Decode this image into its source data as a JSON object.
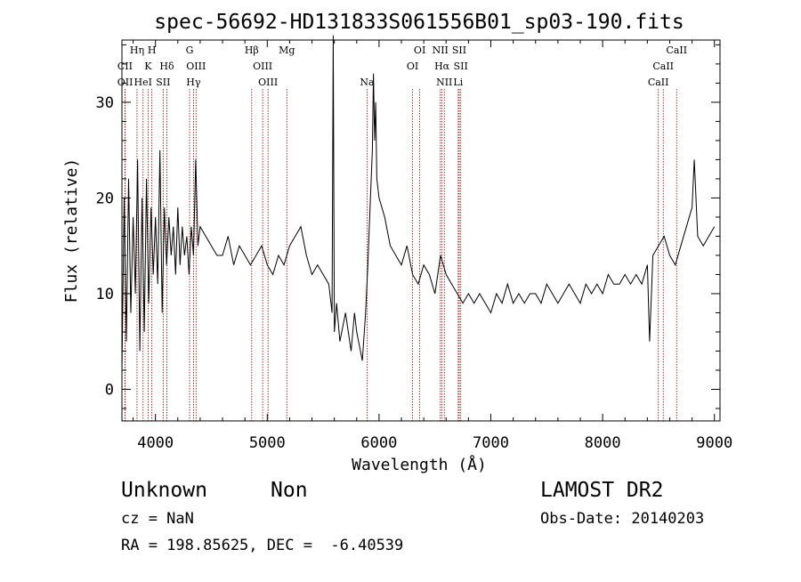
{
  "chart_data": {
    "type": "line",
    "title": "spec-56692-HD131833S061556B01_sp03-190.fits",
    "xlabel": "Wavelength (Å)",
    "ylabel": "Flux (relative)",
    "xlim": [
      3700,
      9050
    ],
    "ylim": [
      -3.3,
      36.5
    ],
    "x_ticks": [
      4000,
      5000,
      6000,
      7000,
      8000,
      9000
    ],
    "y_ticks": [
      0,
      10,
      20,
      30
    ],
    "x_tick_labels": [
      "4000",
      "5000",
      "6000",
      "7000",
      "8000",
      "9000"
    ],
    "y_tick_labels": [
      "0",
      "10",
      "20",
      "30"
    ],
    "grid": false,
    "legend": "none",
    "line_color": "#000000",
    "marker_color": "#8b0000",
    "series": [
      {
        "wavelength": [
          3700,
          3720,
          3740,
          3760,
          3780,
          3800,
          3820,
          3840,
          3860,
          3880,
          3900,
          3920,
          3940,
          3960,
          3980,
          4000,
          4020,
          4040,
          4060,
          4080,
          4100,
          4120,
          4140,
          4160,
          4180,
          4200,
          4220,
          4240,
          4260,
          4280,
          4300,
          4320,
          4340,
          4360,
          4380,
          4400,
          4450,
          4500,
          4550,
          4600,
          4650,
          4700,
          4750,
          4800,
          4850,
          4900,
          4950,
          5000,
          5050,
          5100,
          5150,
          5200,
          5250,
          5300,
          5350,
          5400,
          5450,
          5500,
          5550,
          5580,
          5590,
          5600,
          5620,
          5650,
          5700,
          5750,
          5780,
          5800,
          5850,
          5880,
          5900,
          5920,
          5940,
          5950,
          5960,
          5970,
          5980,
          6000,
          6050,
          6100,
          6150,
          6200,
          6250,
          6300,
          6350,
          6400,
          6450,
          6500,
          6550,
          6600,
          6650,
          6700,
          6750,
          6800,
          6850,
          6900,
          6950,
          7000,
          7050,
          7100,
          7150,
          7200,
          7250,
          7300,
          7350,
          7400,
          7450,
          7500,
          7550,
          7600,
          7650,
          7700,
          7750,
          7800,
          7850,
          7900,
          7950,
          8000,
          8050,
          8100,
          8150,
          8200,
          8250,
          8300,
          8350,
          8400,
          8420,
          8450,
          8500,
          8550,
          8600,
          8650,
          8700,
          8750,
          8800,
          8820,
          8850,
          8900,
          8950,
          9000
        ],
        "flux": [
          2,
          20,
          5,
          22,
          8,
          18,
          10,
          24,
          4,
          20,
          6,
          22,
          9,
          19,
          12,
          18,
          11,
          25,
          8,
          19,
          13,
          18,
          14,
          17,
          12,
          19,
          13,
          17,
          14,
          16,
          12,
          17,
          14,
          24,
          15,
          17,
          16,
          15,
          14,
          14,
          16,
          13,
          15,
          14,
          13,
          14,
          15,
          13,
          12,
          14,
          13,
          15,
          16,
          17,
          14,
          12,
          13,
          12,
          11,
          8,
          37,
          6,
          9,
          5,
          8,
          4,
          8,
          6,
          3,
          8,
          13,
          19,
          25,
          33,
          26,
          30,
          22,
          20,
          18,
          15,
          14,
          13,
          15,
          12,
          11,
          13,
          12,
          10,
          14,
          12,
          11,
          10,
          9,
          10,
          9,
          10,
          9,
          8,
          10,
          9,
          11,
          9,
          10,
          9,
          10,
          10,
          9,
          11,
          10,
          9,
          10,
          11,
          10,
          9,
          11,
          10,
          11,
          10,
          12,
          11,
          11,
          12,
          11,
          12,
          11,
          13,
          5,
          14,
          15,
          16,
          14,
          13,
          15,
          17,
          19,
          24,
          16,
          15,
          16,
          17
        ]
      }
    ],
    "line_markers": [
      {
        "label": "CII",
        "x": 3727,
        "row": 1
      },
      {
        "label": "OII",
        "x": 3729,
        "row": 2
      },
      {
        "label": "Hη",
        "x": 3835,
        "row": 0
      },
      {
        "label": "HeI",
        "x": 3889,
        "row": 2
      },
      {
        "label": "K",
        "x": 3934,
        "row": 1
      },
      {
        "label": "H",
        "x": 3968,
        "row": 0
      },
      {
        "label": "Hδ",
        "x": 4102,
        "row": 1
      },
      {
        "label": "SII",
        "x": 4069,
        "row": 2
      },
      {
        "label": "G",
        "x": 4305,
        "row": 0
      },
      {
        "label": "OIII",
        "x": 4363,
        "row": 1
      },
      {
        "label": "Hγ",
        "x": 4340,
        "row": 2
      },
      {
        "label": "Hβ",
        "x": 4861,
        "row": 0
      },
      {
        "label": "OIII",
        "x": 4959,
        "row": 1
      },
      {
        "label": "OIII",
        "x": 5007,
        "row": 2
      },
      {
        "label": "Mg",
        "x": 5175,
        "row": 0
      },
      {
        "label": "Na",
        "x": 5893,
        "row": 2
      },
      {
        "label": "OI",
        "x": 6300,
        "row": 1
      },
      {
        "label": "OI",
        "x": 6364,
        "row": 0
      },
      {
        "label": "NII",
        "x": 6548,
        "row": 0
      },
      {
        "label": "Hα",
        "x": 6563,
        "row": 1
      },
      {
        "label": "NII",
        "x": 6584,
        "row": 2
      },
      {
        "label": "SII",
        "x": 6717,
        "row": 0
      },
      {
        "label": "SII",
        "x": 6731,
        "row": 1
      },
      {
        "label": "Li",
        "x": 6708,
        "row": 2
      },
      {
        "label": "CaII",
        "x": 8498,
        "row": 2
      },
      {
        "label": "CaII",
        "x": 8542,
        "row": 1
      },
      {
        "label": "CaII",
        "x": 8662,
        "row": 0
      }
    ]
  },
  "info": {
    "class": "Unknown",
    "subclass": "Non",
    "survey": "LAMOST DR2",
    "cz": "cz = NaN",
    "obs_date": "Obs-Date: 20140203",
    "radec": "RA = 198.85625, DEC =  -6.40539"
  }
}
